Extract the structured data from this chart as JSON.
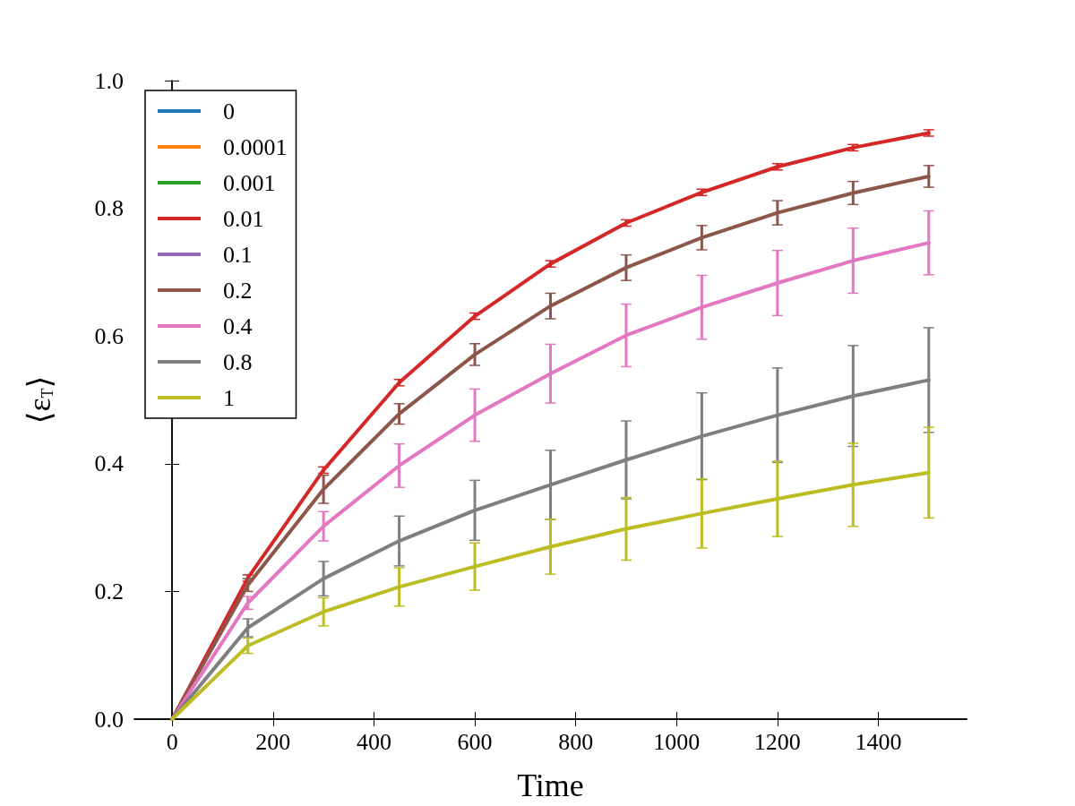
{
  "chart_data": {
    "type": "line",
    "xlabel": "Time",
    "ylabel": "⟨ε$_{T}$⟩",
    "x": [
      0,
      150,
      300,
      450,
      600,
      750,
      900,
      1050,
      1200,
      1350,
      1500
    ],
    "xlim": [
      -75,
      1575
    ],
    "xticks": [
      0,
      200,
      400,
      600,
      800,
      1000,
      1200,
      1400
    ],
    "ylim": [
      0,
      1
    ],
    "yticks": [
      {
        "value": 0,
        "label": "0.0"
      },
      {
        "value": 0.2,
        "label": "0.2"
      },
      {
        "value": 0.4,
        "label": "0.4"
      },
      {
        "value": 0.6,
        "label": "0.6"
      },
      {
        "value": 0.8,
        "label": "0.8"
      },
      {
        "value": 1,
        "label": "1.0"
      }
    ],
    "grid": false,
    "legend": "top left",
    "marker": "none",
    "line_style": "solid",
    "series": [
      {
        "name": "0",
        "color": "#1f77b4",
        "values": [
          null,
          null,
          null,
          null,
          null,
          null,
          null,
          null,
          null,
          null,
          null
        ]
      },
      {
        "name": "0.0001",
        "color": "#ff7f0e",
        "values": [
          null,
          null,
          null,
          null,
          null,
          null,
          null,
          null,
          null,
          null,
          null
        ]
      },
      {
        "name": "0.001",
        "color": "#2ca02c",
        "values": [
          null,
          null,
          null,
          null,
          null,
          null,
          null,
          null,
          null,
          null,
          null
        ]
      },
      {
        "name": "0.01",
        "color": "#d62728",
        "values": [
          0,
          0.221,
          0.39,
          0.527,
          0.631,
          0.713,
          0.777,
          0.825,
          0.865,
          0.895,
          0.918
        ],
        "errors": [
          null,
          0.005,
          0.005,
          0.005,
          0.005,
          0.005,
          0.005,
          0.005,
          0.005,
          0.005,
          0.005
        ]
      },
      {
        "name": "0.1",
        "color": "#9467bd",
        "values": [
          null,
          null,
          null,
          null,
          null,
          null,
          null,
          null,
          null,
          null,
          null
        ]
      },
      {
        "name": "0.2",
        "color": "#8c564b",
        "values": [
          0,
          0.21,
          0.36,
          0.478,
          0.571,
          0.647,
          0.707,
          0.754,
          0.793,
          0.824,
          0.85
        ],
        "errors": [
          null,
          0.01,
          0.022,
          0.016,
          0.017,
          0.02,
          0.02,
          0.019,
          0.019,
          0.018,
          0.017
        ]
      },
      {
        "name": "0.4",
        "color": "#e377c2",
        "values": [
          0,
          0.182,
          0.302,
          0.397,
          0.476,
          0.541,
          0.601,
          0.645,
          0.683,
          0.718,
          0.746
        ],
        "errors": [
          null,
          0.01,
          0.023,
          0.034,
          0.041,
          0.046,
          0.049,
          0.05,
          0.051,
          0.051,
          0.05
        ]
      },
      {
        "name": "0.8",
        "color": "#7f7f7f",
        "values": [
          0,
          0.143,
          0.22,
          0.279,
          0.327,
          0.367,
          0.406,
          0.443,
          0.476,
          0.506,
          0.531
        ],
        "errors": [
          null,
          0.014,
          0.027,
          0.039,
          0.047,
          0.054,
          0.061,
          0.068,
          0.074,
          0.079,
          0.082
        ]
      },
      {
        "name": "1",
        "color": "#bcbd22",
        "values": [
          0,
          0.115,
          0.168,
          0.207,
          0.239,
          0.27,
          0.298,
          0.322,
          0.345,
          0.367,
          0.386
        ],
        "errors": [
          null,
          0.012,
          0.022,
          0.03,
          0.037,
          0.043,
          0.049,
          0.054,
          0.059,
          0.065,
          0.071
        ]
      }
    ]
  }
}
